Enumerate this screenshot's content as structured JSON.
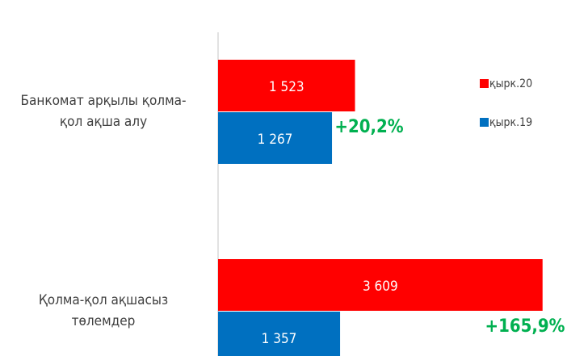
{
  "chart_data": {
    "type": "hbar",
    "categories": [
      [
        "Банкомат арқылы қолма-",
        "қол ақша алу"
      ],
      [
        "Қолма-қол ақшасыз",
        "төлемдер"
      ]
    ],
    "series": [
      {
        "name": "қырк.20",
        "color": "#ff0000",
        "values": [
          1523,
          3609
        ],
        "value_labels": [
          "1 523",
          "3 609"
        ]
      },
      {
        "name": "қырк.19",
        "color": "#0070c0",
        "values": [
          1267,
          1357
        ],
        "value_labels": [
          "1 267",
          "1 357"
        ]
      }
    ],
    "annotations": [
      "+20,2%",
      "+165,9%"
    ],
    "xlim": [
      0,
      3800
    ],
    "legend": "right"
  }
}
